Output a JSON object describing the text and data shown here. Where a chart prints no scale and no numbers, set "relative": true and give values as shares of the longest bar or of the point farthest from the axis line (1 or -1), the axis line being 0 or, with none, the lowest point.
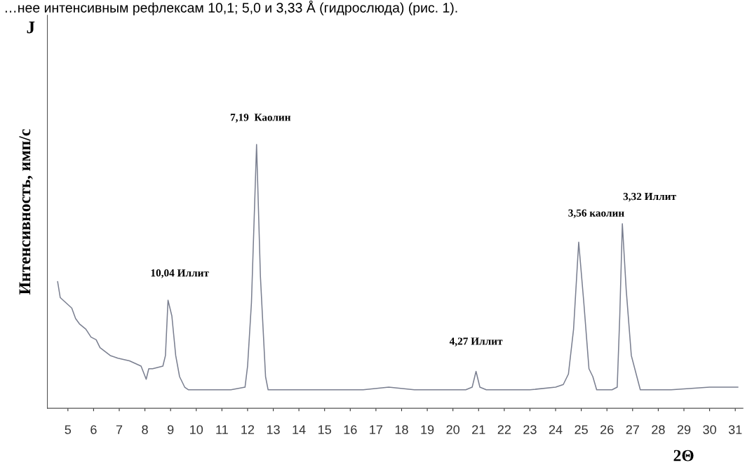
{
  "chart_data": {
    "type": "line",
    "relative": true,
    "ylabel": "Интенсивность, имп/с",
    "xlabel": "2Θ",
    "annotations": [
      "…нее интенсивным рефлексам 10,1; 5,0 и 3,33 Å (гидрослюда) (рис. 1).",
      "J",
      {
        "text": "10,04 Иллит",
        "x": 8.9,
        "y": 0.41
      },
      {
        "text": "7,19  Каолин",
        "x": 12.35,
        "y": 1.0
      },
      {
        "text": "4,27 Иллит",
        "x": 20.9,
        "y": 0.14
      },
      {
        "text": "3,56 каолин",
        "x": 24.9,
        "y": 0.63
      },
      {
        "text": "3,32 Иллит",
        "x": 26.6,
        "y": 0.7
      }
    ],
    "xlim": [
      4.2,
      31.3
    ],
    "xticks": [
      5,
      6,
      7,
      8,
      9,
      10,
      11,
      12,
      13,
      14,
      15,
      16,
      17,
      18,
      19,
      20,
      21,
      22,
      23,
      24,
      25,
      26,
      27,
      28,
      29,
      30,
      31
    ],
    "grid": false,
    "legend": false,
    "marker": "none",
    "line_style": "solid",
    "series": [
      {
        "color": "#7a7f90",
        "x": [
          4.6,
          4.7,
          5.15,
          5.3,
          5.45,
          5.7,
          5.9,
          6.1,
          6.25,
          6.65,
          6.95,
          7.4,
          7.85,
          8.05,
          8.15,
          8.3,
          8.7,
          8.8,
          8.9,
          9.05,
          9.2,
          9.35,
          9.55,
          9.7,
          10.5,
          11.35,
          11.9,
          12.0,
          12.15,
          12.35,
          12.5,
          12.7,
          12.8,
          13.5,
          15,
          16.5,
          17.5,
          18.5,
          20.5,
          20.75,
          20.9,
          21.05,
          21.3,
          23,
          24.0,
          24.3,
          24.5,
          24.7,
          24.9,
          25.1,
          25.3,
          25.45,
          25.6,
          26.2,
          26.4,
          26.5,
          26.6,
          26.75,
          26.95,
          27.3,
          28.5,
          30,
          31.1
        ],
        "values": [
          0.48,
          0.42,
          0.38,
          0.34,
          0.32,
          0.3,
          0.27,
          0.26,
          0.23,
          0.2,
          0.19,
          0.18,
          0.16,
          0.11,
          0.15,
          0.15,
          0.16,
          0.2,
          0.41,
          0.35,
          0.2,
          0.12,
          0.08,
          0.07,
          0.07,
          0.07,
          0.08,
          0.16,
          0.4,
          1.0,
          0.5,
          0.12,
          0.07,
          0.07,
          0.07,
          0.07,
          0.08,
          0.07,
          0.07,
          0.08,
          0.14,
          0.08,
          0.07,
          0.07,
          0.08,
          0.09,
          0.13,
          0.3,
          0.63,
          0.4,
          0.15,
          0.12,
          0.07,
          0.07,
          0.08,
          0.35,
          0.7,
          0.45,
          0.2,
          0.07,
          0.07,
          0.08,
          0.08
        ]
      }
    ]
  }
}
